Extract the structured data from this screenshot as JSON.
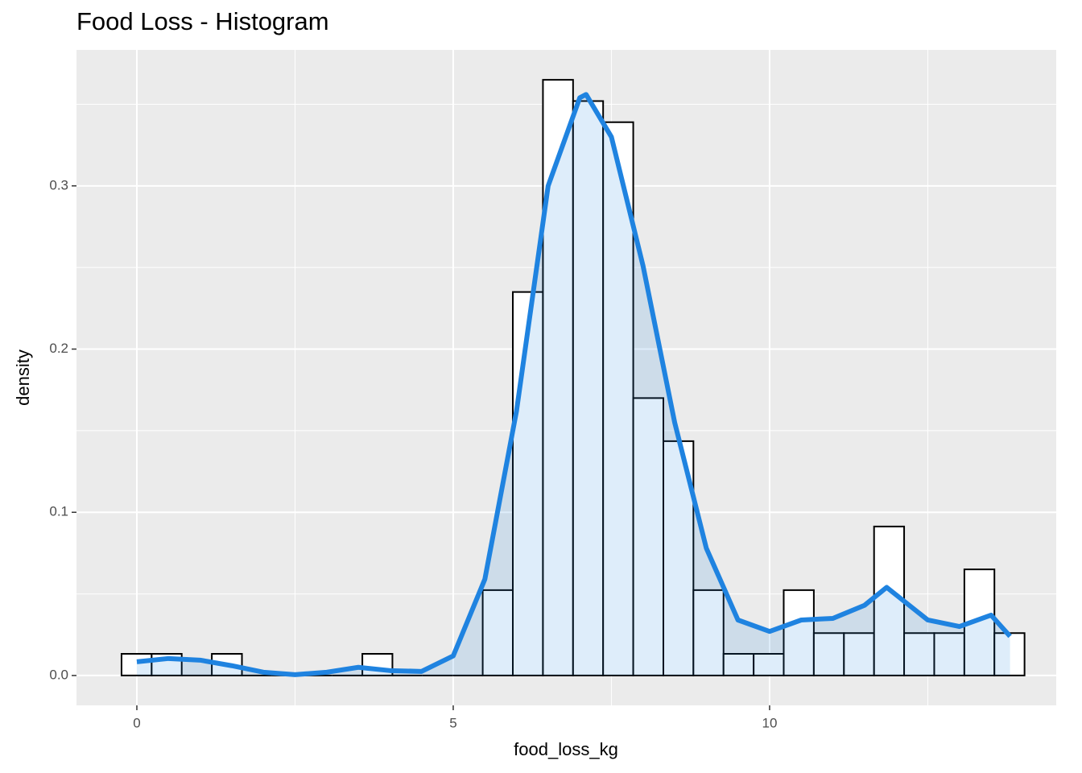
{
  "chart_data": {
    "type": "histogram",
    "title": "Food Loss - Histogram",
    "x_label": "food_loss_kg",
    "y_label": "density",
    "bins": [
      -0.242,
      0.234,
      0.709,
      1.185,
      1.661,
      2.137,
      2.612,
      3.088,
      3.564,
      4.039,
      4.515,
      4.991,
      5.466,
      5.942,
      6.418,
      6.894,
      7.369,
      7.845,
      8.321,
      8.796,
      9.272,
      9.748,
      10.223,
      10.699,
      11.175,
      11.651,
      12.126,
      12.602,
      13.078,
      13.553,
      14.029
    ],
    "values": [
      0.0133,
      0.0133,
      0,
      0.0133,
      0,
      0,
      0,
      0,
      0.0133,
      0,
      0,
      0,
      0.0523,
      0.235,
      0.365,
      0.352,
      0.339,
      0.17,
      0.1436,
      0.0523,
      0.0133,
      0.0133,
      0.0523,
      0.026,
      0.026,
      0.0913,
      0.026,
      0.026,
      0.065,
      0.026
    ],
    "bar_fill": "#ffffff",
    "bar_edge": "#000000",
    "density": {
      "color": "#1f83e0",
      "x": [
        0,
        0.5,
        1,
        1.5,
        2,
        2.5,
        3,
        3.5,
        4,
        4.5,
        5,
        5.5,
        6,
        6.5,
        7,
        7.1,
        7.5,
        8,
        8.5,
        9,
        9.5,
        10,
        10.5,
        11,
        11.5,
        11.85,
        12.5,
        13,
        13.5,
        13.8
      ],
      "y": [
        0.0084,
        0.0104,
        0.0094,
        0.006,
        0.002,
        0.0005,
        0.002,
        0.005,
        0.003,
        0.0025,
        0.012,
        0.059,
        0.162,
        0.3,
        0.354,
        0.356,
        0.33,
        0.251,
        0.155,
        0.078,
        0.034,
        0.027,
        0.034,
        0.035,
        0.043,
        0.054,
        0.034,
        0.03,
        0.037,
        0.024
      ]
    },
    "xlim": [
      -0.954,
      14.53
    ],
    "ylim": [
      -0.0183,
      0.3833
    ],
    "xticks": [
      0,
      5,
      10
    ],
    "yticks": [
      {
        "value": 0,
        "label": "0.0"
      },
      {
        "value": 0.1,
        "label": "0.1"
      },
      {
        "value": 0.2,
        "label": "0.2"
      },
      {
        "value": 0.3,
        "label": "0.3"
      }
    ],
    "grid": true
  }
}
